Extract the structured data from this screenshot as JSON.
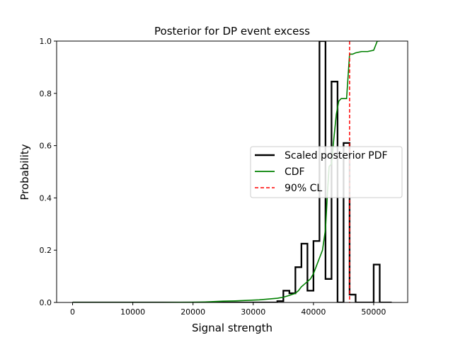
{
  "chart_data": {
    "type": "line",
    "title": "Posterior for DP event excess",
    "xlabel": "Signal strength",
    "ylabel": "Probability",
    "xlim": [
      -2650,
      55650
    ],
    "ylim": [
      0,
      1.0
    ],
    "x_ticks": [
      0,
      10000,
      20000,
      30000,
      40000,
      50000
    ],
    "y_ticks": [
      0.0,
      0.2,
      0.4,
      0.6,
      0.8,
      1.0
    ],
    "grid": false,
    "legend_position": "center-right",
    "series": [
      {
        "name": "Scaled posterior PDF",
        "kind": "step-histogram",
        "color": "#000000",
        "bin_edges": [
          0,
          1000,
          2000,
          3000,
          4000,
          5000,
          6000,
          7000,
          8000,
          9000,
          10000,
          11000,
          12000,
          13000,
          14000,
          15000,
          16000,
          17000,
          18000,
          19000,
          20000,
          21000,
          22000,
          23000,
          24000,
          25000,
          26000,
          27000,
          28000,
          29000,
          30000,
          31000,
          32000,
          33000,
          34000,
          35000,
          36000,
          37000,
          38000,
          39000,
          40000,
          41000,
          42000,
          43000,
          44000,
          45000,
          46000,
          47000,
          48000,
          49000,
          50000,
          51000,
          52000,
          53000
        ],
        "values": [
          0,
          0,
          0,
          0,
          0,
          0,
          0,
          0,
          0,
          0,
          0,
          0,
          0,
          0,
          0,
          0,
          0,
          0,
          0,
          0,
          0,
          0,
          0,
          0,
          0,
          0,
          0,
          0,
          0,
          0,
          0,
          0,
          0,
          0,
          0.005,
          0.045,
          0.035,
          0.135,
          0.225,
          0.045,
          0.235,
          1.0,
          0.09,
          0.845,
          0.0,
          0.61,
          0.03,
          0.0,
          0.0,
          0.0,
          0.145,
          0.0,
          0.0
        ]
      },
      {
        "name": "CDF",
        "kind": "line",
        "color": "#008000",
        "x": [
          0,
          5000,
          10000,
          15000,
          20000,
          22000,
          23000,
          24000,
          25000,
          27000,
          29000,
          30000,
          31000,
          32000,
          33000,
          34000,
          35000,
          36000,
          37000,
          37500,
          38000,
          38500,
          39000,
          39500,
          40000,
          40500,
          41000,
          41500,
          42000,
          42300,
          42600,
          43000,
          43400,
          43800,
          44200,
          44600,
          45000,
          45500,
          46000,
          46500,
          47000,
          48000,
          49000,
          50000,
          50600,
          50800,
          51000
        ],
        "y": [
          0,
          0,
          0,
          0,
          0.001,
          0.002,
          0.003,
          0.004,
          0.005,
          0.006,
          0.008,
          0.009,
          0.01,
          0.012,
          0.014,
          0.016,
          0.02,
          0.027,
          0.035,
          0.045,
          0.06,
          0.07,
          0.08,
          0.09,
          0.11,
          0.14,
          0.17,
          0.2,
          0.28,
          0.41,
          0.52,
          0.53,
          0.63,
          0.72,
          0.77,
          0.78,
          0.78,
          0.78,
          0.95,
          0.95,
          0.955,
          0.96,
          0.96,
          0.965,
          1.0,
          1.0,
          1.0
        ]
      },
      {
        "name": "90% CL",
        "kind": "vline",
        "color": "#ff0000",
        "dashed": true,
        "x_value": 46000
      }
    ]
  }
}
